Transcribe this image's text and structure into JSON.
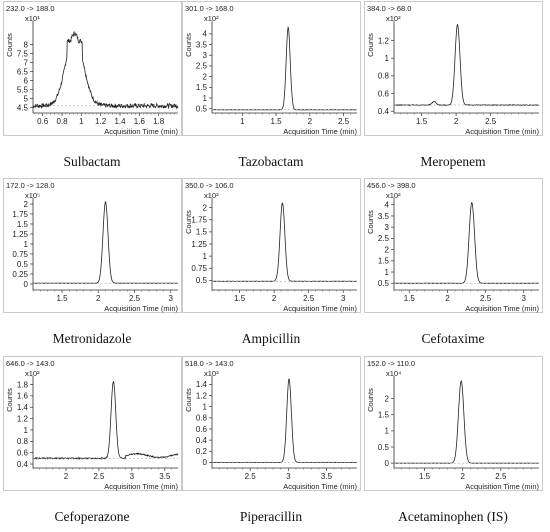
{
  "chart_data": [
    {
      "type": "line",
      "title": "232.0 -> 188.0",
      "ylabel": "Counts",
      "yexp": "x10¹",
      "xlabel": "Acquisition Time (min)",
      "caption": "Sulbactam",
      "xlim": [
        0.5,
        2.0
      ],
      "ylim": [
        4.2,
        9.3
      ],
      "xticks": [
        0.6,
        0.8,
        1,
        1.2,
        1.4,
        1.6,
        1.8
      ],
      "yticks": [
        4.5,
        5,
        5.5,
        6,
        6.5,
        7,
        7.5,
        8
      ],
      "ytick_labels": [
        "4.5",
        "5",
        "5.5",
        "6",
        "6.5",
        "7",
        "7.5",
        "8"
      ],
      "baseline": 4.6,
      "peak": {
        "type": "hump",
        "center": 0.93,
        "height": 8.6,
        "width": 0.09
      },
      "noise": 0.12
    },
    {
      "type": "line",
      "title": "301.0 -> 168.0",
      "ylabel": "Counts",
      "yexp": "x10²",
      "xlabel": "Acquisition Time (min)",
      "caption": "Tazobactam",
      "xlim": [
        0.55,
        2.7
      ],
      "ylim": [
        0.3,
        4.6
      ],
      "xticks": [
        1,
        1.5,
        2,
        2.5
      ],
      "yticks": [
        0.5,
        1,
        1.5,
        2,
        2.5,
        3,
        3.5,
        4
      ],
      "ytick_labels": [
        "0.5",
        "1",
        "1.5",
        "2",
        "2.5",
        "3",
        "3.5",
        "4"
      ],
      "baseline": 0.45,
      "peak": {
        "type": "sharp",
        "center": 1.68,
        "height": 4.3,
        "width": 0.03
      },
      "noise": 0.005
    },
    {
      "type": "line",
      "title": "384.0 -> 68.0",
      "ylabel": "Counts",
      "yexp": "x10²",
      "xlabel": "Acquisition Time (min)",
      "caption": "Meropenem",
      "xlim": [
        1.1,
        3.2
      ],
      "ylim": [
        0.38,
        1.42
      ],
      "xticks": [
        1.5,
        2,
        2.5
      ],
      "yticks": [
        0.4,
        0.6,
        0.8,
        1,
        1.2
      ],
      "ytick_labels": [
        "0.4",
        "0.6",
        "0.8",
        "1",
        "1.2"
      ],
      "baseline": 0.47,
      "peak": {
        "type": "sharp",
        "center": 2.02,
        "height": 1.38,
        "width": 0.035
      },
      "bump": {
        "center": 1.68,
        "height": 0.04,
        "width": 0.03
      },
      "noise": 0.004
    },
    {
      "type": "line",
      "title": "172.0 -> 128.0",
      "ylabel": "",
      "yexp": "x10⁵",
      "xlabel": "Acquisition Time (min)",
      "caption": "Metronidazole",
      "xlim": [
        1.1,
        3.1
      ],
      "ylim": [
        -0.15,
        2.15
      ],
      "xticks": [
        1.5,
        2,
        2.5,
        3
      ],
      "yticks": [
        0,
        0.25,
        0.5,
        0.75,
        1,
        1.25,
        1.5,
        1.75,
        2
      ],
      "ytick_labels": [
        "0",
        "0.25",
        "0.5",
        "0.75",
        "1",
        "1.25",
        "1.5",
        "1.75",
        "2"
      ],
      "baseline": 0.02,
      "peak": {
        "type": "sharp",
        "center": 2.1,
        "height": 2.05,
        "width": 0.035
      },
      "noise": 0.003
    },
    {
      "type": "line",
      "title": "350.0 -> 106.0",
      "ylabel": "Counts",
      "yexp": "x10²",
      "xlabel": "Acquisition Time (min)",
      "caption": "Ampicillin",
      "xlim": [
        1.1,
        3.2
      ],
      "ylim": [
        0.3,
        2.2
      ],
      "xticks": [
        1.5,
        2,
        2.5,
        3
      ],
      "yticks": [
        0.5,
        0.75,
        1,
        1.25,
        1.5,
        1.75,
        2
      ],
      "ytick_labels": [
        "0.5",
        "0.75",
        "1",
        "1.25",
        "1.5",
        "1.75",
        "2"
      ],
      "baseline": 0.48,
      "peak": {
        "type": "sharp",
        "center": 2.12,
        "height": 2.1,
        "width": 0.035
      },
      "noise": 0.004
    },
    {
      "type": "line",
      "title": "456.0 -> 398.0",
      "ylabel": "Counts",
      "yexp": "x10²",
      "xlabel": "Acquisition Time (min)",
      "caption": "Cefotaxime",
      "xlim": [
        1.3,
        3.2
      ],
      "ylim": [
        0.2,
        4.3
      ],
      "xticks": [
        1.5,
        2,
        2.5,
        3
      ],
      "yticks": [
        0.5,
        1,
        1.5,
        2,
        2.5,
        3,
        3.5,
        4
      ],
      "ytick_labels": [
        "0.5",
        "1",
        "1.5",
        "2",
        "2.5",
        "3",
        "3.5",
        "4"
      ],
      "baseline": 0.5,
      "peak": {
        "type": "sharp",
        "center": 2.32,
        "height": 4.1,
        "width": 0.035
      },
      "noise": 0.004
    },
    {
      "type": "line",
      "title": "646.0 -> 143.0",
      "ylabel": "Counts",
      "yexp": "x10²",
      "xlabel": "Acquisition Time (min)",
      "caption": "Cefoperazone",
      "xlim": [
        1.5,
        3.7
      ],
      "ylim": [
        0.33,
        1.95
      ],
      "xticks": [
        2,
        2.5,
        3,
        3.5
      ],
      "yticks": [
        0.4,
        0.6,
        0.8,
        1,
        1.2,
        1.4,
        1.6,
        1.8
      ],
      "ytick_labels": [
        "0.4",
        "0.6",
        "0.8",
        "1",
        "1.2",
        "1.4",
        "1.6",
        "1.8"
      ],
      "baseline": 0.5,
      "peak": {
        "type": "sharp",
        "center": 2.72,
        "height": 1.85,
        "width": 0.035
      },
      "tailbump": {
        "center": 3.3,
        "height": 0.08,
        "width": 0.2
      },
      "noise": 0.01
    },
    {
      "type": "line",
      "title": "518.0 -> 143.0",
      "ylabel": "Counts",
      "yexp": "x10³",
      "xlabel": "Acquisition Time (min)",
      "caption": "Piperacillin",
      "xlim": [
        2.0,
        3.9
      ],
      "ylim": [
        -0.1,
        1.55
      ],
      "xticks": [
        2.5,
        3,
        3.5
      ],
      "yticks": [
        0,
        0.2,
        0.4,
        0.6,
        0.8,
        1,
        1.2,
        1.4
      ],
      "ytick_labels": [
        "0",
        "0.2",
        "0.4",
        "0.6",
        "0.8",
        "1",
        "1.2",
        "1.4"
      ],
      "baseline": 0.0,
      "peak": {
        "type": "sharp",
        "center": 3.01,
        "height": 1.5,
        "width": 0.03
      },
      "noise": 0.002
    },
    {
      "type": "line",
      "title": "152.0 -> 110.0",
      "ylabel": "Counts",
      "yexp": "x10⁴",
      "xlabel": "Acquisition Time (min)",
      "caption": "Acetaminophen (IS)",
      "xlim": [
        1.1,
        3.0
      ],
      "ylim": [
        -0.15,
        2.7
      ],
      "xticks": [
        1.5,
        2,
        2.5
      ],
      "yticks": [
        0,
        0.5,
        1,
        1.5,
        2
      ],
      "ytick_labels": [
        "0",
        "0.5",
        "1",
        "1.5",
        "2"
      ],
      "baseline": 0.0,
      "peak": {
        "type": "sharp",
        "center": 1.98,
        "height": 2.55,
        "width": 0.035
      },
      "noise": 0.002
    }
  ]
}
